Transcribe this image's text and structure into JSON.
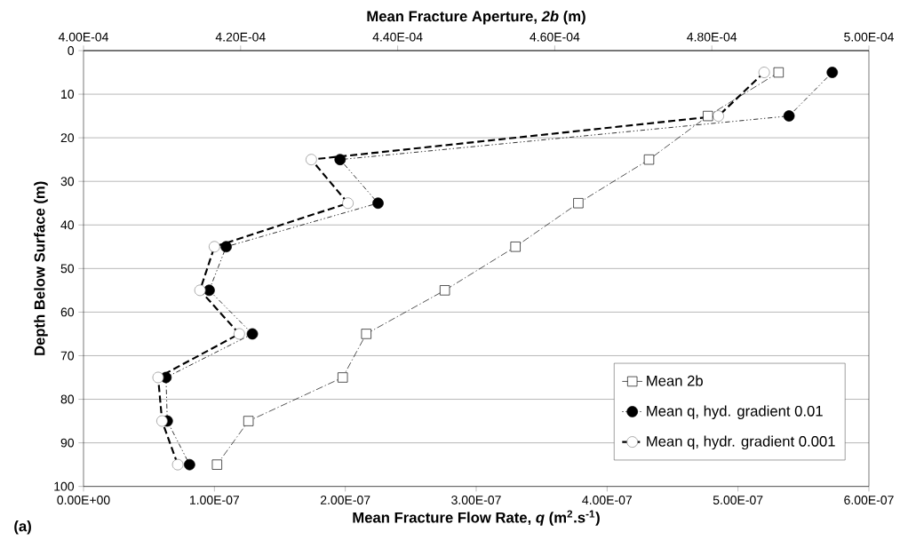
{
  "chart_data": {
    "type": "line",
    "xlabel": "Mean Fracture Flow Rate, *q* (m$^{2}$.s$^{-1}$)",
    "x2label": "Mean Fracture Aperture, *2b* (m)",
    "ylabel": "Depth Below Surface (m)",
    "annotations": [
      "(a)"
    ],
    "xlim": [
      0,
      6e-07
    ],
    "xticks": [
      {
        "value": 0,
        "label": "0.00E+00"
      },
      {
        "value": 1e-07,
        "label": "1.00E-07"
      },
      {
        "value": 2e-07,
        "label": "2.00E-07"
      },
      {
        "value": 3e-07,
        "label": "3.00E-07"
      },
      {
        "value": 4e-07,
        "label": "4.00E-07"
      },
      {
        "value": 5e-07,
        "label": "5.00E-07"
      },
      {
        "value": 6e-07,
        "label": "6.00E-07"
      }
    ],
    "x2lim": [
      0.0004,
      0.0005
    ],
    "x2ticks": [
      {
        "value": 0.0004,
        "label": "4.00E-04"
      },
      {
        "value": 0.00042,
        "label": "4.20E-04"
      },
      {
        "value": 0.00044,
        "label": "4.40E-04"
      },
      {
        "value": 0.00046,
        "label": "4.60E-04"
      },
      {
        "value": 0.00048,
        "label": "4.80E-04"
      },
      {
        "value": 0.0005,
        "label": "5.00E-04"
      }
    ],
    "ylim": [
      100,
      0
    ],
    "yticks": [
      0,
      10,
      20,
      30,
      40,
      50,
      60,
      70,
      80,
      90,
      100
    ],
    "grid": "y",
    "legend": "bottom right",
    "series": [
      {
        "name": "Mean 2b",
        "color": "#000000",
        "axis": "x2",
        "marker": "square",
        "line_style": "dashed",
        "x": [
          0.0004885,
          0.0004795,
          0.000472,
          0.000463,
          0.000455,
          0.000446,
          0.000436,
          0.000433,
          0.000421,
          0.000417
        ],
        "values": [
          5,
          15,
          25,
          35,
          45,
          55,
          65,
          75,
          85,
          95
        ]
      },
      {
        "name": "Mean q, hyd. gradient 0.01",
        "color": "#000000",
        "marker": "circle",
        "line_style": "dotted",
        "x": [
          5.72e-07,
          5.39e-07,
          1.96e-07,
          2.25e-07,
          1.09e-07,
          9.6e-08,
          1.29e-07,
          6.3e-08,
          6.4e-08,
          8.1e-08
        ],
        "values": [
          5,
          15,
          25,
          35,
          45,
          55,
          65,
          75,
          85,
          95
        ]
      },
      {
        "name": "Mean q, hydr. gradient 0.001",
        "color": "#000000",
        "marker": "circle",
        "line_style": "dashed",
        "x": [
          5.2e-07,
          4.85e-07,
          1.74e-07,
          2.02e-07,
          1e-07,
          8.9e-08,
          1.19e-07,
          5.7e-08,
          6e-08,
          7.2e-08
        ],
        "values": [
          5,
          15,
          25,
          35,
          45,
          55,
          65,
          75,
          85,
          95
        ]
      }
    ]
  }
}
